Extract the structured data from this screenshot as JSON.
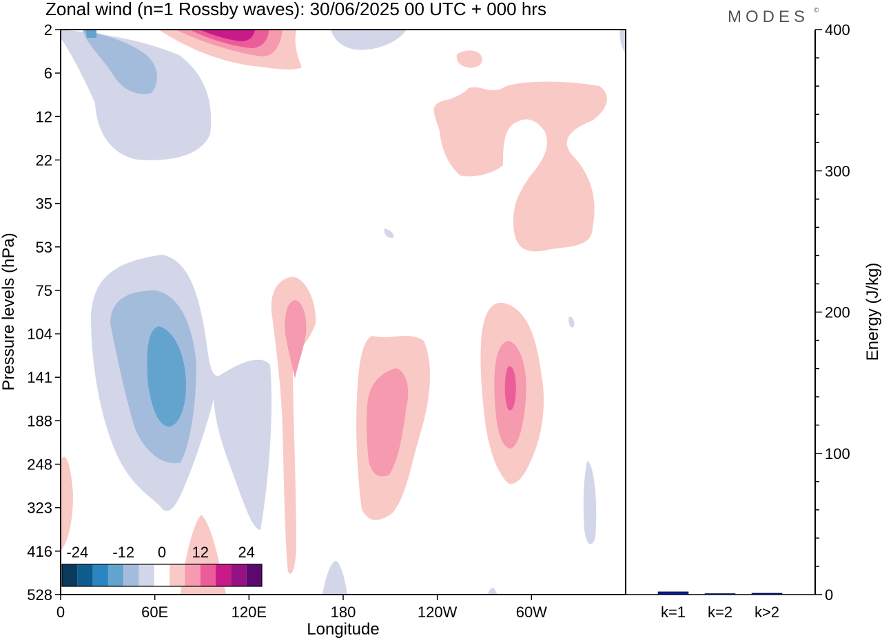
{
  "title": "Zonal wind (n=1 Rossby waves):  30/06/2025  00 UTC  + 000 hrs",
  "logo": "MODES",
  "logo_mark": "©",
  "chart_data": [
    {
      "type": "heatmap",
      "subtype": "filled-contour",
      "xlabel": "Longitude",
      "ylabel": "Pressure levels (hPa)",
      "x_ticks": [
        "0",
        "60E",
        "120E",
        "180",
        "120W",
        "60W"
      ],
      "x_range_deg_east": [
        0,
        360
      ],
      "y_ticks": [
        "2",
        "6",
        "12",
        "22",
        "35",
        "53",
        "75",
        "104",
        "141",
        "188",
        "248",
        "323",
        "416",
        "528"
      ],
      "y_axis_inverted": true,
      "colorbar": {
        "tick_labels": [
          "-24",
          "-12",
          "0",
          "12",
          "24"
        ],
        "levels": [
          -28,
          -24,
          -20,
          -16,
          -12,
          -8,
          -4,
          4,
          8,
          12,
          16,
          20,
          24,
          28
        ],
        "colors": [
          "#0b3a5c",
          "#0f5d8f",
          "#2a86c0",
          "#63a4cf",
          "#a4bcdc",
          "#d3d6e8",
          "#ffffff",
          "#f9c9c6",
          "#f59aaf",
          "#ea5d99",
          "#c91a8a",
          "#951283",
          "#5a0a6e"
        ],
        "placement": "bottom-left inside plot"
      },
      "features": [
        {
          "name": "easterly core lower stratosphere",
          "lon": 45,
          "pressure": 140,
          "value": -16
        },
        {
          "name": "easterly upper stratosphere",
          "lon": 30,
          "pressure": 6,
          "value": -12
        },
        {
          "name": "westerly max top",
          "lon": 95,
          "pressure": 2,
          "value": 20
        },
        {
          "name": "westerly core 150E",
          "lon": 150,
          "pressure": 104,
          "value": 8
        },
        {
          "name": "westerly core 180-150W",
          "lon": 195,
          "pressure": 170,
          "value": 8
        },
        {
          "name": "westerly core 70W",
          "lon": 290,
          "pressure": 130,
          "value": 12
        },
        {
          "name": "westerly upper region",
          "lon": 265,
          "pressure": 20,
          "value": 4
        }
      ]
    },
    {
      "type": "bar",
      "ylabel": "Energy (J/kg)",
      "categories": [
        "k=1",
        "k=2",
        "k>2"
      ],
      "values": [
        2,
        0.3,
        1
      ],
      "ylim": [
        0,
        400
      ],
      "y_ticks": [
        "0",
        "100",
        "200",
        "300",
        "400"
      ],
      "bar_color": "#0a1a8c"
    }
  ]
}
